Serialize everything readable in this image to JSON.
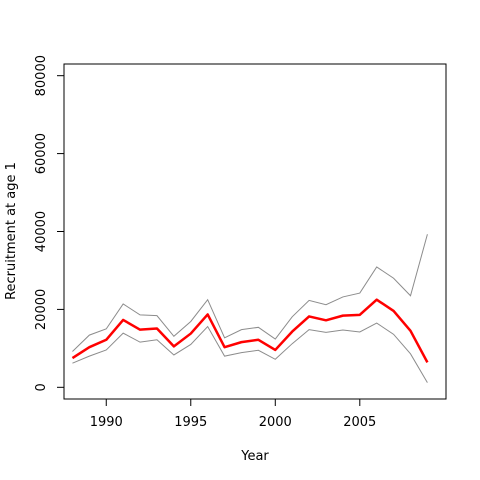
{
  "chart_data": {
    "type": "line",
    "title": "",
    "xlabel": "Year",
    "ylabel": "Recruitment at age 1",
    "x": [
      1988,
      1989,
      1990,
      1991,
      1992,
      1993,
      1994,
      1995,
      1996,
      1997,
      1998,
      1999,
      2000,
      2001,
      2002,
      2003,
      2004,
      2005,
      2006,
      2007,
      2008,
      2009
    ],
    "xlim": [
      1987.5,
      2010.1
    ],
    "ylim": [
      -3000,
      83000
    ],
    "xticks": [
      1990,
      1995,
      2000,
      2005
    ],
    "yticks": [
      0,
      20000,
      40000,
      60000,
      80000
    ],
    "grid": false,
    "series": [
      {
        "role": "upper",
        "color": "#8c8c8c",
        "values": [
          9200,
          13400,
          15000,
          21400,
          18600,
          18400,
          13100,
          16900,
          22500,
          12700,
          14800,
          15400,
          12400,
          18100,
          22300,
          21200,
          23200,
          24200,
          30900,
          28000,
          23500,
          39300
        ]
      },
      {
        "role": "estimate",
        "color": "#ff0000",
        "values": [
          7500,
          10300,
          12200,
          17300,
          14800,
          15100,
          10500,
          13800,
          18700,
          10300,
          11600,
          12200,
          9600,
          14300,
          18200,
          17200,
          18400,
          18600,
          22500,
          19600,
          14500,
          6400
        ]
      },
      {
        "role": "lower",
        "color": "#8c8c8c",
        "values": [
          6200,
          8000,
          9600,
          13900,
          11600,
          12200,
          8300,
          11000,
          15600,
          8000,
          8900,
          9500,
          7200,
          11200,
          14800,
          14100,
          14700,
          14200,
          16500,
          13600,
          8600,
          1200
        ]
      }
    ]
  }
}
